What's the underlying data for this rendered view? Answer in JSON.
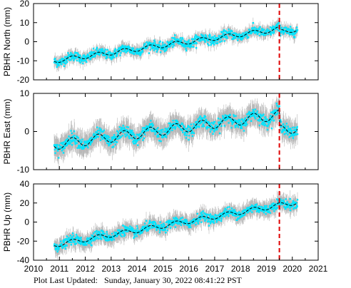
{
  "footer": {
    "label": "Plot Last Updated:",
    "value": "Sunday, January 30, 2022 08:41:22 PST"
  },
  "colors": {
    "points": "#00e5ff",
    "errorbars": "#b8b8b8",
    "model": "#000000",
    "event": "#e00000"
  },
  "chart_data": [
    {
      "type": "scatter",
      "ylabel": "PBHR North (mm)",
      "xlim": [
        2010,
        2021
      ],
      "ylim": [
        -20,
        20
      ],
      "xticks": [
        2010,
        2011,
        2012,
        2013,
        2014,
        2015,
        2016,
        2017,
        2018,
        2019,
        2020,
        2021
      ],
      "yticks": [
        -20,
        -10,
        0,
        10,
        20
      ],
      "show_xtick_labels": false,
      "data_range": [
        2010.8,
        2020.2
      ],
      "event_line_x": 2019.5,
      "trend": {
        "x": [
          2010.8,
          2020.2
        ],
        "y": [
          -10,
          8
        ]
      },
      "seasonal_amplitude": 1.2,
      "scatter_spread": 2.0,
      "errorbar_halfwidth": 2.5,
      "offsets": [
        {
          "x": 2019.5,
          "dy": -1.5
        }
      ]
    },
    {
      "type": "scatter",
      "ylabel": "PBHR East (mm)",
      "xlim": [
        2010,
        2021
      ],
      "ylim": [
        -10,
        10
      ],
      "xticks": [
        2010,
        2011,
        2012,
        2013,
        2014,
        2015,
        2016,
        2017,
        2018,
        2019,
        2020,
        2021
      ],
      "yticks": [
        -10,
        0,
        10
      ],
      "show_xtick_labels": false,
      "data_range": [
        2010.8,
        2020.2
      ],
      "event_line_x": 2019.5,
      "trend": {
        "x": [
          2010.8,
          2020.2
        ],
        "y": [
          -3.5,
          5
        ]
      },
      "seasonal_amplitude": 1.3,
      "scatter_spread": 1.3,
      "errorbar_halfwidth": 2.5,
      "offsets": [
        {
          "x": 2019.5,
          "dy": -4
        }
      ]
    },
    {
      "type": "scatter",
      "ylabel": "PBHR Up (mm)",
      "xlim": [
        2010,
        2021
      ],
      "ylim": [
        -40,
        40
      ],
      "xticks": [
        2010,
        2011,
        2012,
        2013,
        2014,
        2015,
        2016,
        2017,
        2018,
        2019,
        2020,
        2021
      ],
      "yticks": [
        -40,
        -20,
        0,
        20,
        40
      ],
      "show_xtick_labels": true,
      "data_range": [
        2010.8,
        2020.2
      ],
      "event_line_x": 2019.5,
      "trend": {
        "x": [
          2010.8,
          2020.2
        ],
        "y": [
          -24,
          21
        ]
      },
      "seasonal_amplitude": 2.5,
      "scatter_spread": 4.0,
      "errorbar_halfwidth": 7.0,
      "offsets": []
    }
  ]
}
